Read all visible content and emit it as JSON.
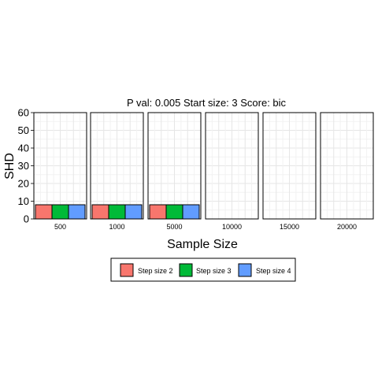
{
  "chart_data": {
    "type": "bar",
    "title": "P val: 0.005 Start size: 3 Score: bic",
    "xlabel": "Sample Size",
    "ylabel": "SHD",
    "ylim": [
      0,
      60
    ],
    "yticks": [
      0,
      10,
      20,
      30,
      40,
      50,
      60
    ],
    "grid": true,
    "legend_position": "bottom",
    "facets": [
      "500",
      "1000",
      "5000",
      "10000",
      "15000",
      "20000"
    ],
    "series": [
      {
        "name": "Step size 2",
        "color": "#F8766D",
        "values": [
          8,
          8,
          8,
          null,
          null,
          null
        ]
      },
      {
        "name": "Step size 3",
        "color": "#00BA38",
        "values": [
          8,
          8,
          8,
          null,
          null,
          null
        ]
      },
      {
        "name": "Step size 4",
        "color": "#619CFF",
        "values": [
          8,
          8,
          8,
          null,
          null,
          null
        ]
      }
    ]
  }
}
